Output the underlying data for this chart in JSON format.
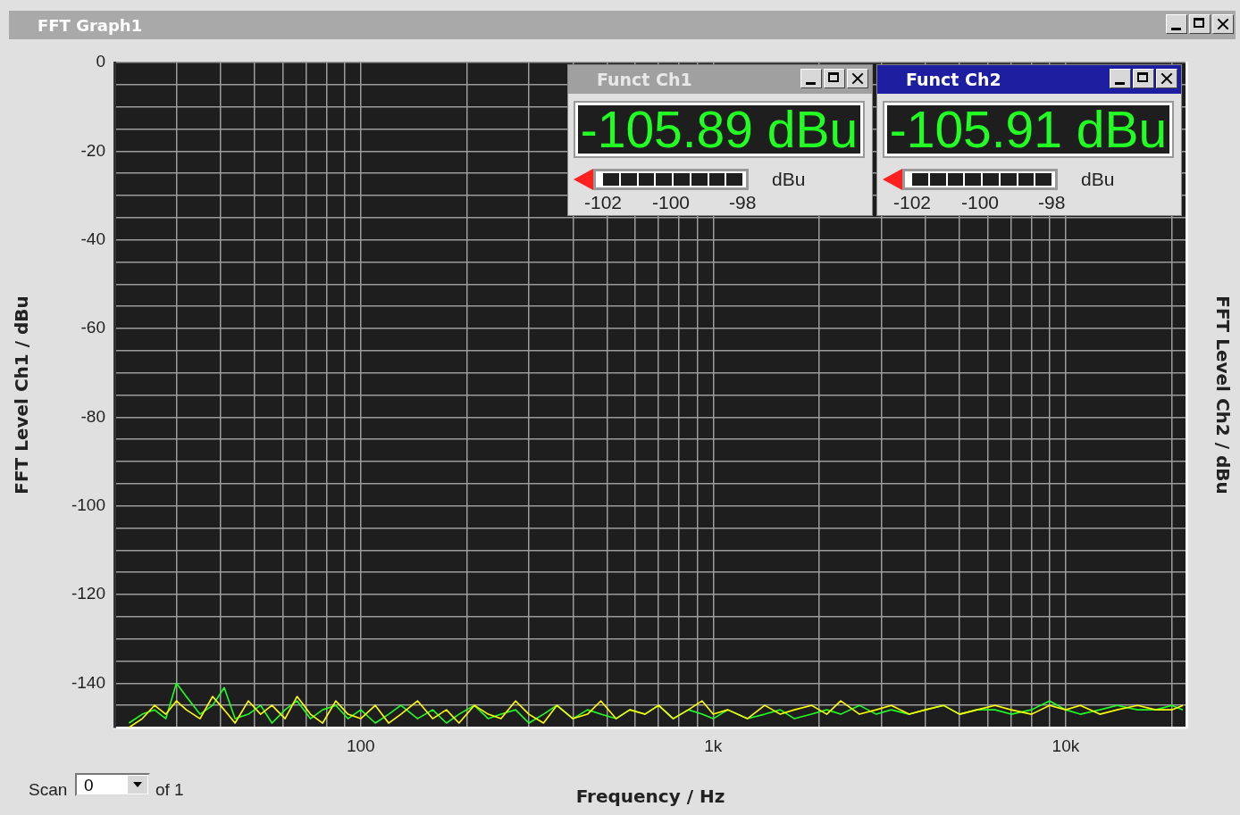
{
  "chart_data": {
    "type": "line",
    "title": "FFT Graph1",
    "xlabel": "Frequency / Hz",
    "ylabel": "FFT Level Ch1 / dBu",
    "y2label": "FFT Level Ch2 / dBu",
    "annotations": [
      "Funct Ch1",
      "-105.89 dBu",
      "dBu",
      "-102",
      "-100",
      "-98",
      "Funct Ch2",
      "-105.91 dBu",
      "dBu",
      "-102",
      "-100",
      "-98",
      "Scan",
      "0",
      "of 1"
    ],
    "x": [
      22,
      24,
      26,
      28,
      30,
      32,
      35,
      38,
      41,
      44,
      48,
      52,
      56,
      61,
      66,
      72,
      78,
      85,
      92,
      100,
      110,
      120,
      130,
      145,
      160,
      175,
      190,
      210,
      230,
      250,
      275,
      300,
      330,
      360,
      400,
      440,
      480,
      530,
      580,
      640,
      700,
      770,
      850,
      930,
      1000,
      1100,
      1250,
      1400,
      1550,
      1700,
      1900,
      2100,
      2300,
      2600,
      2900,
      3200,
      3600,
      4000,
      4500,
      5000,
      5600,
      6300,
      7000,
      8000,
      9000,
      10000,
      11000,
      12500,
      14000,
      16000,
      18000,
      20000,
      21500
    ],
    "series": [
      {
        "color": "#ffff00",
        "values": [
          -150,
          -148,
          -145,
          -147,
          -144,
          -146,
          -148,
          -143,
          -146,
          -149,
          -144,
          -147,
          -145,
          -148,
          -143,
          -147,
          -149,
          -144,
          -147,
          -148,
          -145,
          -149,
          -147,
          -144,
          -148,
          -146,
          -149,
          -145,
          -147,
          -148,
          -144,
          -147,
          -149,
          -145,
          -148,
          -147,
          -144,
          -148,
          -146,
          -147,
          -145,
          -148,
          -146,
          -144,
          -147,
          -146,
          -148,
          -145,
          -147,
          -146,
          -145,
          -147,
          -144,
          -147,
          -146,
          -145,
          -147,
          -146,
          -145,
          -147,
          -146,
          -145,
          -146,
          -147,
          -145,
          -146,
          -145,
          -147,
          -146,
          -145,
          -146,
          -146,
          -145
        ]
      },
      {
        "color": "#22ff22",
        "values": [
          -149,
          -147,
          -146,
          -148,
          -140,
          -143,
          -147,
          -145,
          -141,
          -148,
          -147,
          -145,
          -149,
          -146,
          -144,
          -148,
          -146,
          -145,
          -148,
          -146,
          -149,
          -147,
          -145,
          -148,
          -146,
          -149,
          -147,
          -145,
          -148,
          -147,
          -146,
          -149,
          -147,
          -145,
          -148,
          -146,
          -147,
          -148,
          -146,
          -147,
          -145,
          -148,
          -146,
          -147,
          -148,
          -146,
          -148,
          -147,
          -146,
          -148,
          -147,
          -146,
          -147,
          -145,
          -147,
          -146,
          -147,
          -146,
          -145,
          -147,
          -146,
          -146,
          -147,
          -146,
          -144,
          -146,
          -147,
          -146,
          -145,
          -146,
          -146,
          -145,
          -146
        ]
      }
    ],
    "xlim": [
      20,
      22000
    ],
    "xticks": [
      {
        "value": 20,
        "label": null
      },
      {
        "value": 30,
        "label": null
      },
      {
        "value": 40,
        "label": null
      },
      {
        "value": 50,
        "label": null
      },
      {
        "value": 60,
        "label": null
      },
      {
        "value": 70,
        "label": null
      },
      {
        "value": 80,
        "label": null
      },
      {
        "value": 90,
        "label": null
      },
      100,
      {
        "value": 200,
        "label": null
      },
      {
        "value": 300,
        "label": null
      },
      {
        "value": 400,
        "label": null
      },
      {
        "value": 500,
        "label": null
      },
      {
        "value": 600,
        "label": null
      },
      {
        "value": 700,
        "label": null
      },
      {
        "value": 800,
        "label": null
      },
      {
        "value": 900,
        "label": null
      },
      {
        "value": 1000,
        "label": "1k"
      },
      {
        "value": 2000,
        "label": null
      },
      {
        "value": 3000,
        "label": null
      },
      {
        "value": 4000,
        "label": null
      },
      {
        "value": 5000,
        "label": null
      },
      {
        "value": 6000,
        "label": null
      },
      {
        "value": 7000,
        "label": null
      },
      {
        "value": 8000,
        "label": null
      },
      {
        "value": 9000,
        "label": null
      },
      {
        "value": 10000,
        "label": "10k"
      },
      {
        "value": 20000,
        "label": null
      }
    ],
    "ylim": [
      -150,
      0
    ],
    "yticks": [
      0,
      {
        "value": -5,
        "label": null
      },
      {
        "value": -10,
        "label": null
      },
      {
        "value": -15,
        "label": null
      },
      -20,
      {
        "value": -25,
        "label": null
      },
      {
        "value": -30,
        "label": null
      },
      {
        "value": -35,
        "label": null
      },
      -40,
      {
        "value": -45,
        "label": null
      },
      {
        "value": -50,
        "label": null
      },
      {
        "value": -55,
        "label": null
      },
      -60,
      {
        "value": -65,
        "label": null
      },
      {
        "value": -70,
        "label": null
      },
      {
        "value": -75,
        "label": null
      },
      -80,
      {
        "value": -85,
        "label": null
      },
      {
        "value": -90,
        "label": null
      },
      {
        "value": -95,
        "label": null
      },
      -100,
      {
        "value": -105,
        "label": null
      },
      {
        "value": -110,
        "label": null
      },
      {
        "value": -115,
        "label": null
      },
      -120,
      {
        "value": -125,
        "label": null
      },
      {
        "value": -130,
        "label": null
      },
      {
        "value": -135,
        "label": null
      },
      -140,
      {
        "value": -145,
        "label": null
      }
    ],
    "log": "x",
    "grid": true,
    "line_style": "solid",
    "marker": "none"
  }
}
